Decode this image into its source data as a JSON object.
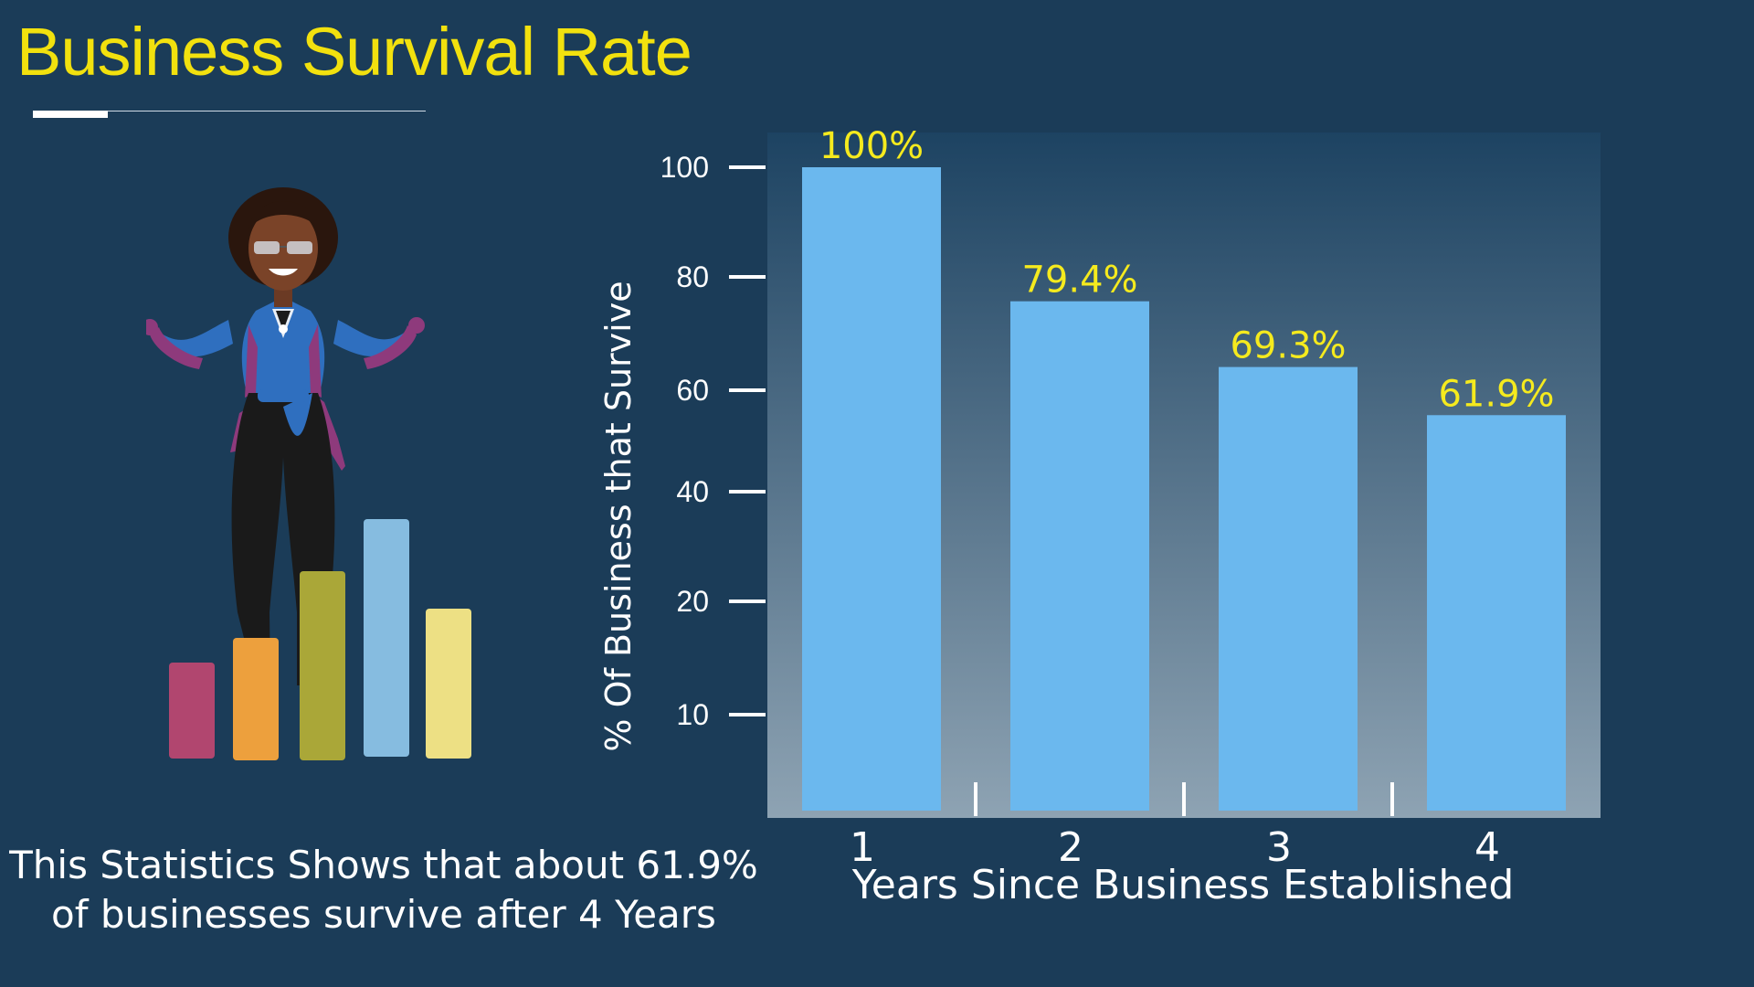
{
  "title": "Business Survival Rate",
  "caption": {
    "line1": "This Statistics Shows that about 61.9%",
    "line2": "of businesses survive after 4 Years"
  },
  "colors": {
    "background": "#1b3c58",
    "title": "#f2e10e",
    "bar": "#6bb8ee",
    "data_label": "#f5ea1e",
    "plot_bg_top": "#1d4362",
    "plot_bg_bottom": "#8ea3b3"
  },
  "illustration": {
    "icon": "businesswoman-with-bar-chart-icon",
    "bar_colors": [
      "#b1466f",
      "#eda03d",
      "#aaa738",
      "#86bce0",
      "#ede084"
    ]
  },
  "chart_data": {
    "type": "bar",
    "categories": [
      "1",
      "2",
      "3",
      "4"
    ],
    "values": [
      100,
      79.4,
      69.3,
      61.9
    ],
    "data_labels": [
      "100%",
      "79.4%",
      "69.3%",
      "61.9%"
    ],
    "xlabel": "Years Since Business Established",
    "ylabel": "% Of Business that Survive",
    "yticks": [
      "100",
      "80",
      "60",
      "40",
      "20",
      "10"
    ],
    "grid": false,
    "legend": "none"
  }
}
